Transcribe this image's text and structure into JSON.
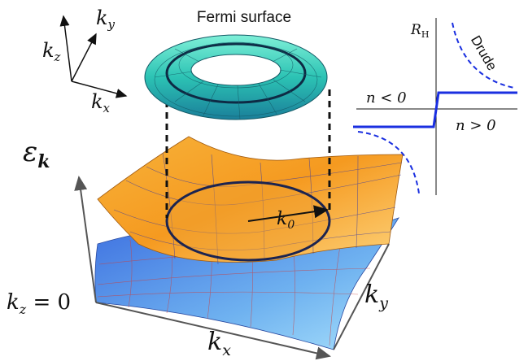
{
  "title": "Fermi surface",
  "small_axes": {
    "kz": {
      "base": "k",
      "sub": "z"
    },
    "ky": {
      "base": "k",
      "sub": "y"
    },
    "kx": {
      "base": "k",
      "sub": "x"
    }
  },
  "energy_label": {
    "base": "ε",
    "sub": "k"
  },
  "radius_label": {
    "base": "k",
    "sub": "0"
  },
  "plane_label": {
    "base": "k",
    "sub": "z",
    "rest": " = 0"
  },
  "big_axes": {
    "kx": {
      "base": "k",
      "sub": "x"
    },
    "ky": {
      "base": "k",
      "sub": "y"
    }
  },
  "inset": {
    "ylabel": {
      "base": "R",
      "sub": "H"
    },
    "drude": "Drude",
    "left": "n < 0",
    "right": "n > 0"
  }
}
